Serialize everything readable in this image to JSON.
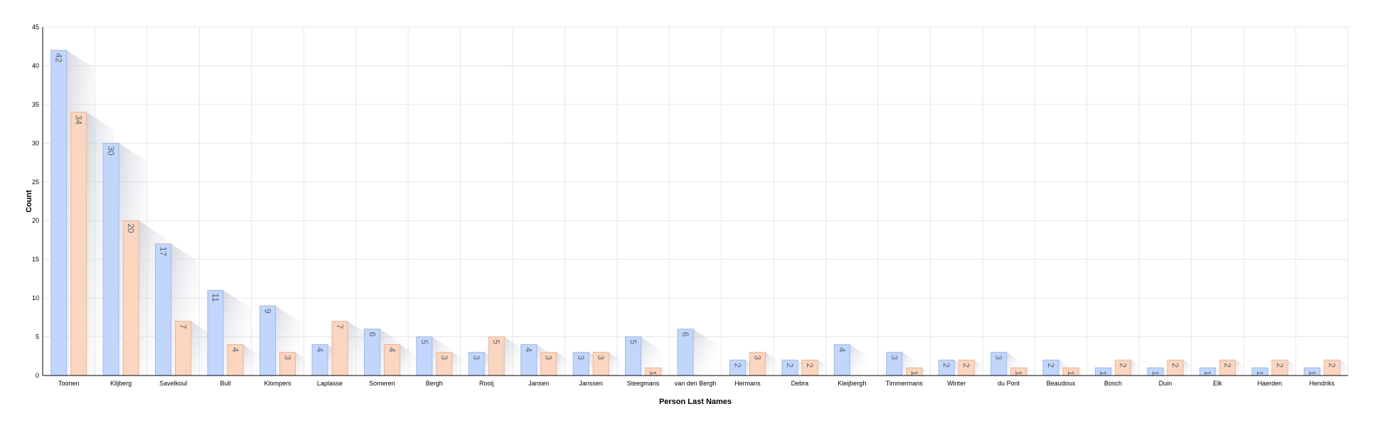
{
  "chart_data": {
    "type": "bar",
    "title": "",
    "xlabel": "Person Last Names",
    "ylabel": "Count",
    "ylim": [
      0,
      45
    ],
    "yticks": [
      0,
      5,
      10,
      15,
      20,
      25,
      30,
      35,
      40,
      45
    ],
    "grid": true,
    "legend": "none",
    "categories": [
      "Toonen",
      "Klijberg",
      "Savelkoul",
      "Bull",
      "Klompers",
      "Laplasse",
      "Someren",
      "Bergh",
      "Rooij",
      "Jansen",
      "Janssen",
      "Steegmans",
      "van den Bergh",
      "Hermans",
      "Debra",
      "Kleijbergh",
      "Timmermans",
      "Winter",
      "du Pont",
      "Beaudoux",
      "Bosch",
      "Duin",
      "Elk",
      "Haerden",
      "Hendriks"
    ],
    "series": [
      {
        "values": [
          42,
          30,
          17,
          11,
          9,
          4,
          6,
          5,
          3,
          4,
          3,
          5,
          6,
          2,
          2,
          4,
          3,
          2,
          3,
          2,
          1,
          1,
          1,
          1,
          1
        ],
        "color": "#c2d6fb",
        "stroke": "#9db8ef"
      },
      {
        "values": [
          34,
          20,
          7,
          4,
          3,
          7,
          4,
          3,
          5,
          3,
          3,
          1,
          0,
          3,
          2,
          0,
          1,
          2,
          1,
          1,
          2,
          2,
          2,
          2,
          2
        ],
        "color": "#fad5c0",
        "stroke": "#eeb494"
      }
    ]
  }
}
